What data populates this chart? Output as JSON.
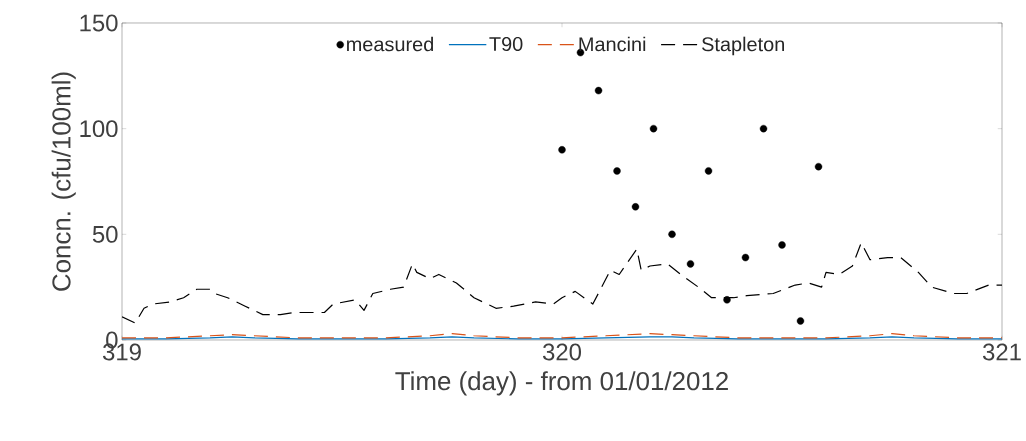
{
  "chart_data": {
    "type": "line",
    "xlabel": "Time (day) - from 01/01/2012",
    "ylabel": "Concn. (cfu/100ml)",
    "xlim": [
      319,
      321
    ],
    "ylim": [
      0,
      150
    ],
    "xticks": [
      319,
      320,
      321
    ],
    "yticks": [
      0,
      50,
      100,
      150
    ],
    "grid": false,
    "legend": "top",
    "series": [
      {
        "name": "measured",
        "type": "scatter",
        "color": "#000000",
        "x": [
          320.0,
          320.042,
          320.083,
          320.125,
          320.167,
          320.208,
          320.25,
          320.292,
          320.333,
          320.375,
          320.417,
          320.458,
          320.5,
          320.542,
          320.583
        ],
        "values": [
          90,
          136,
          118,
          80,
          63,
          100,
          50,
          36,
          80,
          19,
          39,
          100,
          45,
          9,
          82
        ]
      },
      {
        "name": "T90",
        "line_style": "solid",
        "color": "#0072bd",
        "x": [
          319.0,
          319.1,
          319.2,
          319.25,
          319.3,
          319.4,
          319.5,
          319.6,
          319.7,
          319.75,
          319.8,
          319.9,
          320.0,
          320.1,
          320.2,
          320.25,
          320.3,
          320.4,
          320.5,
          320.6,
          320.7,
          320.75,
          320.8,
          320.9,
          321.0
        ],
        "values": [
          0.5,
          0.5,
          1,
          1.5,
          1,
          0.5,
          0.5,
          0.5,
          1,
          1.5,
          1,
          0.5,
          0.5,
          1,
          1.5,
          1.5,
          1,
          0.5,
          0.5,
          0.5,
          1,
          1.5,
          1,
          0.5,
          0.5
        ]
      },
      {
        "name": "Mancini",
        "line_style": "dashed",
        "color": "#d95319",
        "x": [
          319.0,
          319.1,
          319.2,
          319.25,
          319.3,
          319.4,
          319.5,
          319.6,
          319.7,
          319.75,
          319.8,
          319.9,
          320.0,
          320.1,
          320.2,
          320.25,
          320.3,
          320.4,
          320.5,
          320.6,
          320.7,
          320.75,
          320.8,
          320.9,
          321.0
        ],
        "values": [
          1,
          1,
          2,
          2.5,
          2,
          1,
          1,
          1,
          2,
          3,
          2,
          1,
          1,
          2,
          3,
          2.5,
          2,
          1,
          1,
          1,
          2,
          3,
          2,
          1,
          1
        ]
      },
      {
        "name": "Stapleton",
        "line_style": "dashed",
        "color": "#000000",
        "x": [
          319.0,
          319.03,
          319.05,
          319.07,
          319.11,
          319.14,
          319.17,
          319.2,
          319.21,
          319.24,
          319.28,
          319.32,
          319.36,
          319.39,
          319.42,
          319.46,
          319.48,
          319.53,
          319.55,
          319.57,
          319.61,
          319.64,
          319.66,
          319.67,
          319.7,
          319.72,
          319.76,
          319.8,
          319.85,
          319.89,
          319.94,
          319.98,
          320.0,
          320.03,
          320.07,
          320.09,
          320.11,
          320.13,
          320.17,
          320.18,
          320.2,
          320.24,
          320.27,
          320.31,
          320.34,
          320.39,
          320.42,
          320.48,
          320.53,
          320.56,
          320.59,
          320.6,
          320.63,
          320.66,
          320.68,
          320.7,
          320.74,
          320.77,
          320.81,
          320.84,
          320.89,
          320.92,
          320.97,
          321.0
        ],
        "values": [
          11,
          8,
          15,
          17,
          18,
          20,
          24,
          24,
          22,
          20,
          16,
          12,
          12,
          13,
          13,
          13,
          17,
          19,
          14,
          22,
          24,
          25,
          36,
          32,
          29,
          31,
          27,
          20,
          15,
          16,
          18,
          17,
          20,
          23,
          17,
          25,
          33,
          31,
          43,
          33,
          35,
          36,
          31,
          25,
          20,
          20,
          21,
          22,
          26,
          27,
          25,
          32,
          31,
          35,
          46,
          38,
          39,
          39,
          32,
          25,
          22,
          22,
          26,
          26
        ]
      }
    ]
  }
}
